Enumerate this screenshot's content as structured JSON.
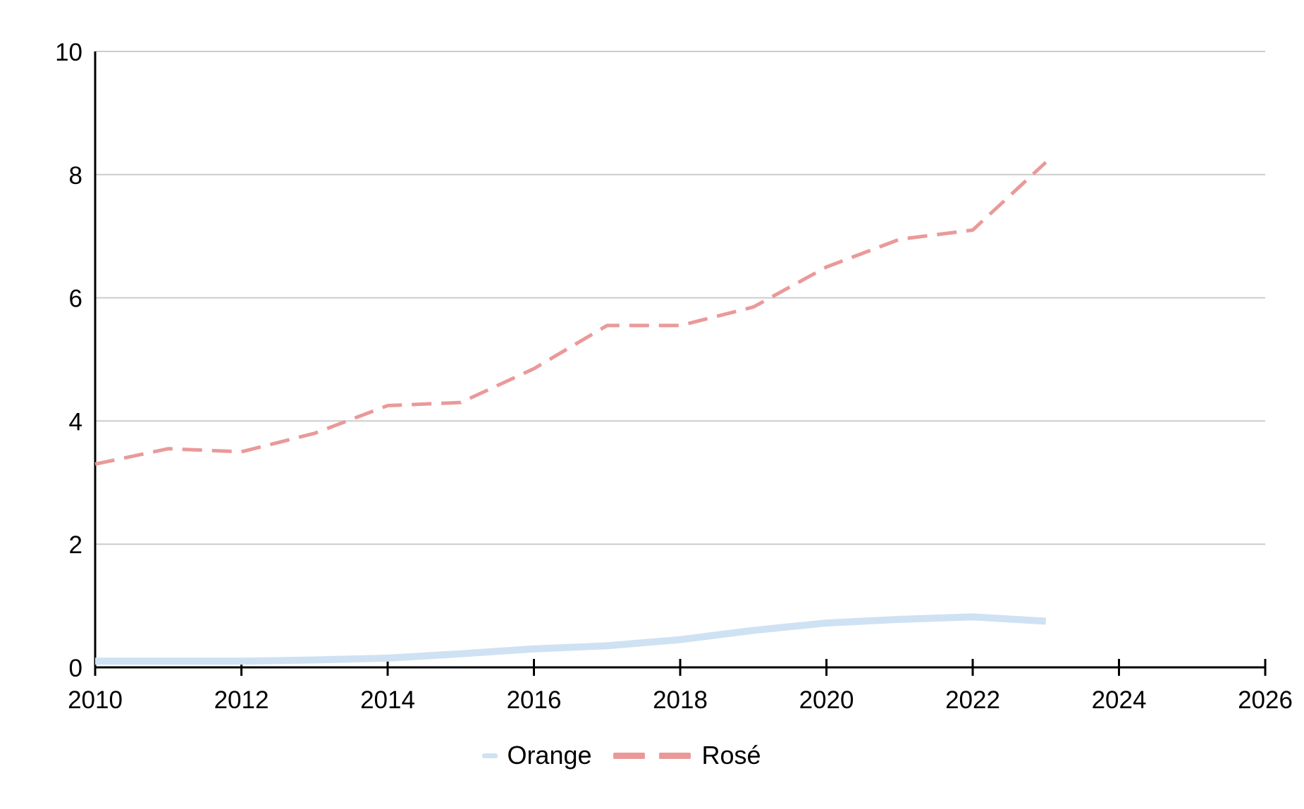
{
  "chart_data": {
    "type": "line",
    "x": [
      2010,
      2011,
      2012,
      2013,
      2014,
      2015,
      2016,
      2017,
      2018,
      2019,
      2020,
      2021,
      2022,
      2023
    ],
    "series": [
      {
        "name": "Orange",
        "values": [
          0.1,
          0.1,
          0.1,
          0.12,
          0.15,
          0.22,
          0.3,
          0.35,
          0.45,
          0.6,
          0.72,
          0.78,
          0.82,
          0.75
        ],
        "color": "#cfe2f3",
        "style": "solid",
        "width": 10
      },
      {
        "name": "Rosé",
        "values": [
          3.3,
          3.55,
          3.5,
          3.8,
          4.25,
          4.3,
          4.85,
          5.55,
          5.55,
          5.85,
          6.5,
          6.95,
          7.1,
          8.2
        ],
        "color": "#ea9999",
        "style": "dashed",
        "width": 5
      }
    ],
    "title": "",
    "xlabel": "",
    "ylabel": "",
    "xlim": [
      2010,
      2026
    ],
    "ylim": [
      0,
      10
    ],
    "x_ticks": [
      2010,
      2012,
      2014,
      2016,
      2018,
      2020,
      2022,
      2024,
      2026
    ],
    "y_ticks": [
      0,
      2,
      4,
      6,
      8,
      10
    ],
    "grid": "horizontal",
    "legend_position": "bottom-center",
    "colors": {
      "grid": "#cccccc",
      "axis": "#000000",
      "label": "#000000",
      "background": "#ffffff"
    }
  },
  "legend": {
    "items": [
      {
        "label": "Orange"
      },
      {
        "label": "Rosé"
      }
    ]
  }
}
